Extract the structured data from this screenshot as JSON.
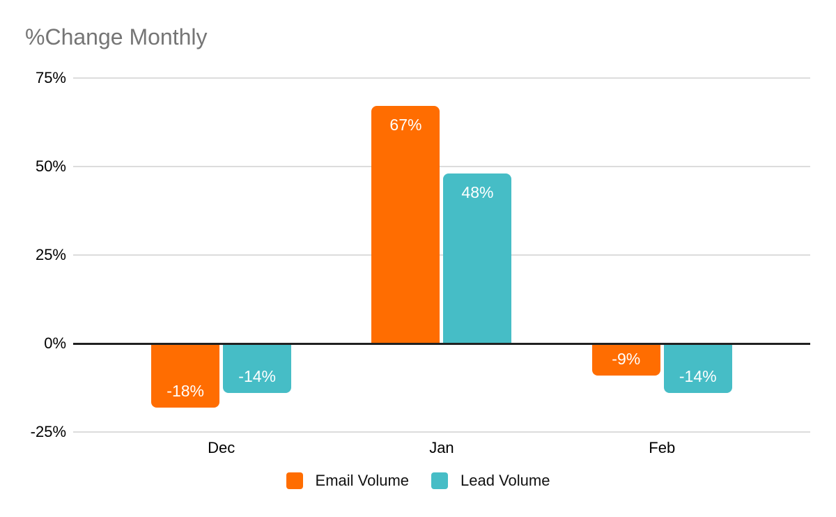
{
  "chart_data": {
    "type": "bar",
    "title": "%Change Monthly",
    "categories": [
      "Dec",
      "Jan",
      "Feb"
    ],
    "series": [
      {
        "name": "Email Volume",
        "color": "#FF6D01",
        "values": [
          -18,
          67,
          -9
        ],
        "labels": [
          "-18%",
          "67%",
          "-9%"
        ]
      },
      {
        "name": "Lead Volume",
        "color": "#46BDC6",
        "values": [
          -14,
          48,
          -14
        ],
        "labels": [
          "-14%",
          "48%",
          "-14%"
        ]
      }
    ],
    "yticks": [
      75,
      50,
      25,
      0,
      -25
    ],
    "ytick_labels": [
      "75%",
      "50%",
      "25%",
      "0%",
      "-25%"
    ],
    "ylim": [
      -25,
      75
    ],
    "grid": true,
    "legend_position": "bottom",
    "colors": {
      "title_text": "#757575",
      "axis_text": "#000000",
      "gridline": "#dcdcdc",
      "zero_line": "#212121",
      "background": "#ffffff",
      "bar_label_text": "#ffffff"
    }
  }
}
